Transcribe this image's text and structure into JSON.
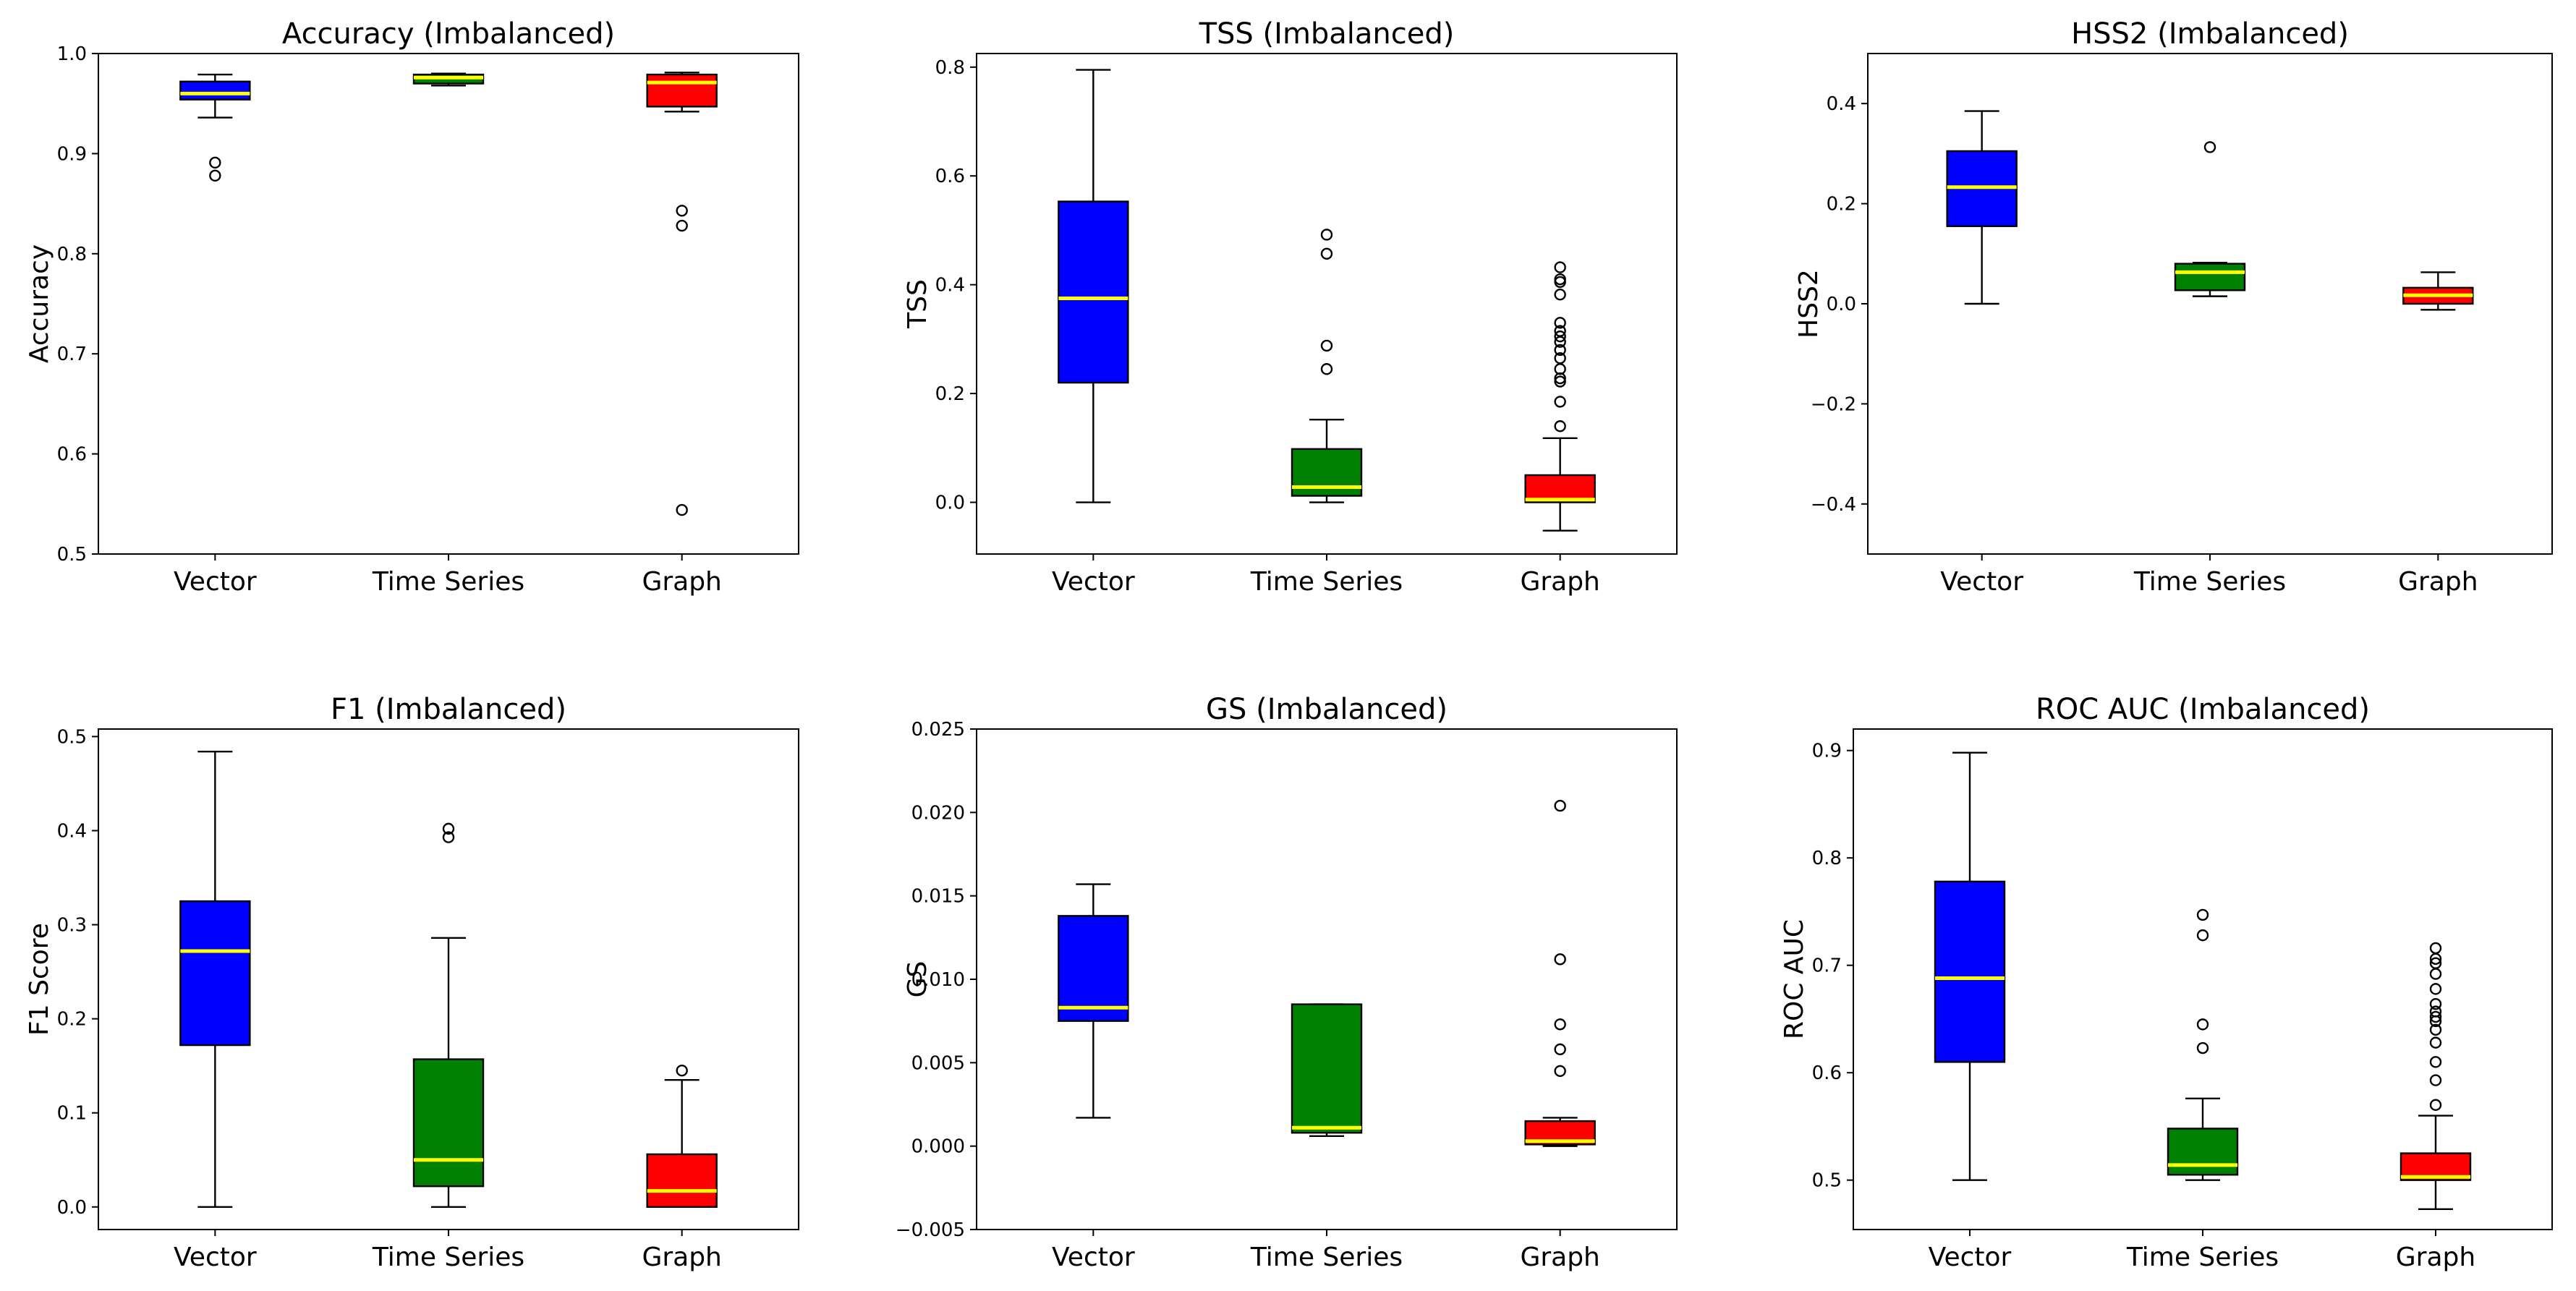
{
  "chart_data": [
    {
      "type": "boxplot",
      "title": "Accuracy (Imbalanced)",
      "ylabel": "Accuracy",
      "ylim": [
        0.5,
        1.0
      ],
      "yticks": [
        "0.5",
        "0.6",
        "0.7",
        "0.8",
        "0.9",
        "1.0"
      ],
      "ytick_values": [
        0.5,
        0.6,
        0.7,
        0.8,
        0.9,
        1.0
      ],
      "categories": [
        "Vector",
        "Time Series",
        "Graph"
      ],
      "colors": [
        "#0000ff",
        "#008000",
        "#ff0000"
      ],
      "boxes": [
        {
          "name": "Vector",
          "whislo": 0.936,
          "q1": 0.954,
          "med": 0.96,
          "q3": 0.972,
          "whishi": 0.979,
          "fliers": [
            0.891,
            0.878
          ]
        },
        {
          "name": "Time Series",
          "whislo": 0.968,
          "q1": 0.97,
          "med": 0.976,
          "q3": 0.979,
          "whishi": 0.98,
          "fliers": []
        },
        {
          "name": "Graph",
          "whislo": 0.942,
          "q1": 0.947,
          "med": 0.971,
          "q3": 0.979,
          "whishi": 0.981,
          "fliers": [
            0.843,
            0.828,
            0.544
          ]
        }
      ]
    },
    {
      "type": "boxplot",
      "title": "TSS (Imbalanced)",
      "ylabel": "TSS",
      "ylim": [
        -0.095,
        0.825
      ],
      "yticks": [
        "0.0",
        "0.2",
        "0.4",
        "0.6",
        "0.8"
      ],
      "ytick_values": [
        0.0,
        0.2,
        0.4,
        0.6,
        0.8
      ],
      "categories": [
        "Vector",
        "Time Series",
        "Graph"
      ],
      "colors": [
        "#0000ff",
        "#008000",
        "#ff0000"
      ],
      "boxes": [
        {
          "name": "Vector",
          "whislo": 0.0,
          "q1": 0.22,
          "med": 0.375,
          "q3": 0.553,
          "whishi": 0.795,
          "fliers": []
        },
        {
          "name": "Time Series",
          "whislo": 0.0,
          "q1": 0.012,
          "med": 0.028,
          "q3": 0.098,
          "whishi": 0.152,
          "fliers": [
            0.492,
            0.457,
            0.288,
            0.245
          ]
        },
        {
          "name": "Graph",
          "whislo": -0.052,
          "q1": 0.0,
          "med": 0.005,
          "q3": 0.05,
          "whishi": 0.118,
          "fliers": [
            0.432,
            0.41,
            0.405,
            0.382,
            0.33,
            0.315,
            0.305,
            0.295,
            0.28,
            0.265,
            0.245,
            0.228,
            0.222,
            0.185,
            0.14
          ]
        }
      ]
    },
    {
      "type": "boxplot",
      "title": "HSS2 (Imbalanced)",
      "ylabel": "HSS2",
      "ylim": [
        -0.5,
        0.5
      ],
      "yticks": [
        "−0.4",
        "−0.2",
        "0.0",
        "0.2",
        "0.4"
      ],
      "ytick_values": [
        -0.4,
        -0.2,
        0.0,
        0.2,
        0.4
      ],
      "categories": [
        "Vector",
        "Time Series",
        "Graph"
      ],
      "colors": [
        "#0000ff",
        "#008000",
        "#ff0000"
      ],
      "boxes": [
        {
          "name": "Vector",
          "whislo": 0.0,
          "q1": 0.155,
          "med": 0.233,
          "q3": 0.305,
          "whishi": 0.385,
          "fliers": []
        },
        {
          "name": "Time Series",
          "whislo": 0.015,
          "q1": 0.027,
          "med": 0.063,
          "q3": 0.08,
          "whishi": 0.082,
          "fliers": [
            0.313
          ]
        },
        {
          "name": "Graph",
          "whislo": -0.012,
          "q1": 0.0,
          "med": 0.017,
          "q3": 0.032,
          "whishi": 0.063,
          "fliers": []
        }
      ]
    },
    {
      "type": "boxplot",
      "title": "F1 (Imbalanced)",
      "ylabel": "F1 Score",
      "ylim": [
        -0.024,
        0.508
      ],
      "yticks": [
        "0.0",
        "0.1",
        "0.2",
        "0.3",
        "0.4",
        "0.5"
      ],
      "ytick_values": [
        0.0,
        0.1,
        0.2,
        0.3,
        0.4,
        0.5
      ],
      "categories": [
        "Vector",
        "Time Series",
        "Graph"
      ],
      "colors": [
        "#0000ff",
        "#008000",
        "#ff0000"
      ],
      "boxes": [
        {
          "name": "Vector",
          "whislo": 0.0,
          "q1": 0.172,
          "med": 0.272,
          "q3": 0.325,
          "whishi": 0.484,
          "fliers": []
        },
        {
          "name": "Time Series",
          "whislo": 0.0,
          "q1": 0.022,
          "med": 0.05,
          "q3": 0.157,
          "whishi": 0.286,
          "fliers": [
            0.402,
            0.393
          ]
        },
        {
          "name": "Graph",
          "whislo": 0.0,
          "q1": 0.0,
          "med": 0.017,
          "q3": 0.056,
          "whishi": 0.135,
          "fliers": [
            0.145
          ]
        }
      ]
    },
    {
      "type": "boxplot",
      "title": "GS (Imbalanced)",
      "ylabel": "GS",
      "ylim": [
        -0.005,
        0.025
      ],
      "yticks": [
        "−0.005",
        "0.000",
        "0.005",
        "0.010",
        "0.015",
        "0.020",
        "0.025"
      ],
      "ytick_values": [
        -0.005,
        0.0,
        0.005,
        0.01,
        0.015,
        0.02,
        0.025
      ],
      "categories": [
        "Vector",
        "Time Series",
        "Graph"
      ],
      "colors": [
        "#0000ff",
        "#008000",
        "#ff0000"
      ],
      "boxes": [
        {
          "name": "Vector",
          "whislo": 0.0017,
          "q1": 0.0075,
          "med": 0.0083,
          "q3": 0.0138,
          "whishi": 0.0157,
          "fliers": []
        },
        {
          "name": "Time Series",
          "whislo": 0.0006,
          "q1": 0.0008,
          "med": 0.0011,
          "q3": 0.0085,
          "whishi": 0.0085,
          "fliers": []
        },
        {
          "name": "Graph",
          "whislo": 0.0,
          "q1": 0.0001,
          "med": 0.0003,
          "q3": 0.0015,
          "whishi": 0.0017,
          "fliers": [
            0.0204,
            0.0112,
            0.0073,
            0.0058,
            0.0045
          ]
        }
      ]
    },
    {
      "type": "boxplot",
      "title": "ROC AUC (Imbalanced)",
      "ylabel": "ROC AUC",
      "ylim": [
        0.454,
        0.92
      ],
      "yticks": [
        "0.5",
        "0.6",
        "0.7",
        "0.8",
        "0.9"
      ],
      "ytick_values": [
        0.5,
        0.6,
        0.7,
        0.8,
        0.9
      ],
      "categories": [
        "Vector",
        "Time Series",
        "Graph"
      ],
      "colors": [
        "#0000ff",
        "#008000",
        "#ff0000"
      ],
      "boxes": [
        {
          "name": "Vector",
          "whislo": 0.5,
          "q1": 0.61,
          "med": 0.688,
          "q3": 0.778,
          "whishi": 0.898,
          "fliers": []
        },
        {
          "name": "Time Series",
          "whislo": 0.5,
          "q1": 0.505,
          "med": 0.514,
          "q3": 0.548,
          "whishi": 0.576,
          "fliers": [
            0.747,
            0.728,
            0.645,
            0.623
          ]
        },
        {
          "name": "Graph",
          "whislo": 0.473,
          "q1": 0.5,
          "med": 0.503,
          "q3": 0.525,
          "whishi": 0.56,
          "fliers": [
            0.716,
            0.706,
            0.702,
            0.692,
            0.678,
            0.664,
            0.657,
            0.652,
            0.648,
            0.64,
            0.628,
            0.61,
            0.593,
            0.57
          ]
        }
      ]
    }
  ]
}
